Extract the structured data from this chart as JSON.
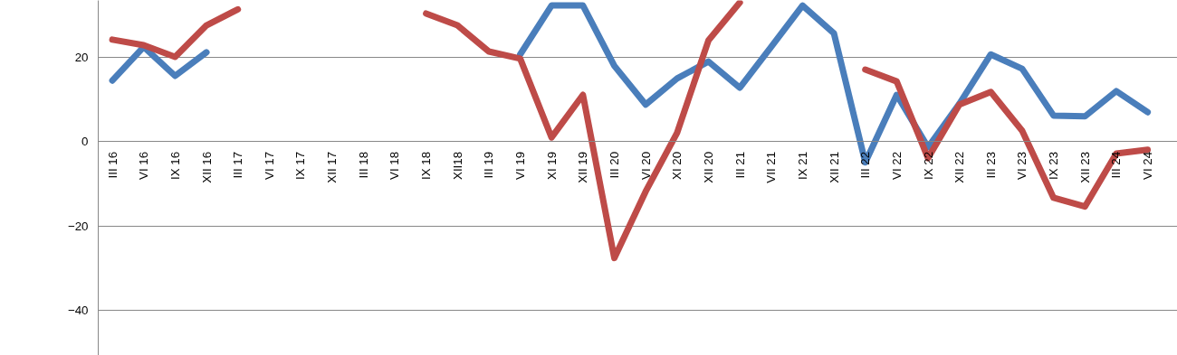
{
  "chart_data": {
    "type": "line",
    "categories": [
      "III 16",
      "VI 16",
      "IX 16",
      "XII 16",
      "III 17",
      "VI 17",
      "IX 17",
      "XII 17",
      "III 18",
      "VI 18",
      "IX 18",
      "XII18",
      "III 19",
      "VI 19",
      "XI 19",
      "XII 19",
      "III 20",
      "VI 20",
      "XI 20",
      "XII 20",
      "III 21",
      "VII 21",
      "IX 21",
      "XII 21",
      "III 22",
      "VI 22",
      "IX 22",
      "XII 22",
      "III 23",
      "VI 23",
      "IX 23",
      "XII 23",
      "III 24",
      "VI 24"
    ],
    "series": [
      {
        "color": "#4a7ebb",
        "values": [
          14.5,
          22.5,
          15.6,
          21.2,
          null,
          null,
          null,
          null,
          null,
          null,
          null,
          null,
          null,
          20.7,
          32.3,
          32.3,
          18,
          8.8,
          15,
          19,
          12.8,
          22.5,
          32.3,
          25.7,
          -4.9,
          11.1,
          -1.3,
          9,
          20.7,
          17.3,
          6.2,
          6,
          12,
          7
        ]
      },
      {
        "color": "#be4b48",
        "values": [
          24.2,
          22.9,
          20.1,
          27.6,
          31.4,
          null,
          null,
          null,
          null,
          null,
          30.4,
          27.6,
          21.4,
          19.7,
          1,
          11.1,
          -27.6,
          -11.8,
          2.1,
          24,
          33,
          null,
          null,
          null,
          17.1,
          14.3,
          -3.9,
          8.8,
          11.8,
          2.6,
          -13.3,
          -15.4,
          -2.8,
          -1.9
        ]
      }
    ],
    "ylim": [
      -50.7,
      33.5
    ],
    "yticks": [
      -40,
      -20,
      0,
      20
    ],
    "grid": "y",
    "marker": "none",
    "line_style": "solid"
  }
}
